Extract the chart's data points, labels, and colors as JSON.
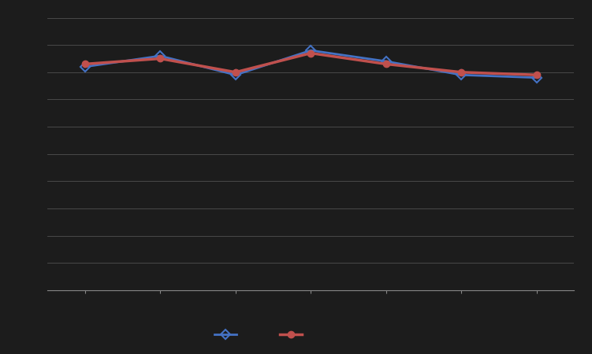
{
  "x": [
    1,
    2,
    3,
    4,
    5,
    6,
    7
  ],
  "series1_values": [
    0.82,
    0.86,
    0.79,
    0.88,
    0.84,
    0.79,
    0.78
  ],
  "series2_values": [
    0.83,
    0.85,
    0.8,
    0.87,
    0.83,
    0.8,
    0.79
  ],
  "series1_color": "#4472c4",
  "series2_color": "#c0504d",
  "background_color": "#1c1c1c",
  "plot_bg_color": "#1c1c1c",
  "grid_color": "#555555",
  "axis_color": "#888888",
  "ylim": [
    0.0,
    1.0
  ],
  "xlim": [
    0.5,
    7.5
  ],
  "series1_marker": "D",
  "series2_marker": "o",
  "series1_markersize": 6,
  "series2_markersize": 6,
  "linewidth": 2.0,
  "n_yticks": 11
}
